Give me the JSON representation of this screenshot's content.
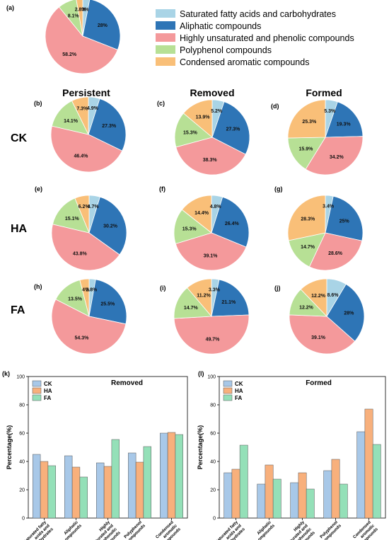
{
  "colors": {
    "saturated": "#a9d4e6",
    "aliphatic": "#2e75b6",
    "unsaturated": "#f4999b",
    "polyphenol": "#b7e095",
    "condensed": "#f9bf78",
    "bar_ck": "#a8c8e8",
    "bar_ha": "#f8b07c",
    "bar_fa": "#94e0b8"
  },
  "legend": {
    "items": [
      "Saturated fatty acids and carbohydrates",
      "Aliphatic compounds",
      "Highly unsaturated and phenolic compounds",
      "Polyphenol compounds",
      "Condensed aromatic compounds"
    ]
  },
  "columns": [
    "Persistent",
    "Removed",
    "Formed"
  ],
  "rows": [
    "CK",
    "HA",
    "FA"
  ],
  "chart_data": [
    {
      "type": "pie",
      "panel": "(a)",
      "categories": [
        "Saturated fatty acids and carbohydrates",
        "Aliphatic compounds",
        "Highly unsaturated and phenolic compounds",
        "Polyphenol compounds",
        "Condensed aromatic compounds"
      ],
      "values": [
        3,
        28,
        58.2,
        8.1,
        2.8
      ],
      "labels": [
        "3%",
        "28%",
        "58.2%",
        "8.1%",
        "2.8%"
      ]
    },
    {
      "type": "pie",
      "panel": "(b)",
      "values": [
        4.9,
        27.3,
        46.4,
        14.1,
        7.3
      ],
      "labels": [
        "4.9%",
        "27.3%",
        "46.4%",
        "14.1%",
        "7.3%"
      ]
    },
    {
      "type": "pie",
      "panel": "(c)",
      "values": [
        5.2,
        27.3,
        38.3,
        15.3,
        13.9
      ],
      "labels": [
        "5.2%",
        "27.3%",
        "38.3%",
        "15.3%",
        "13.9%"
      ]
    },
    {
      "type": "pie",
      "panel": "(d)",
      "values": [
        5.3,
        19.3,
        34.2,
        15.9,
        25.3
      ],
      "labels": [
        "5.3%",
        "19.3%",
        "34.2%",
        "15.9%",
        "25.3%"
      ]
    },
    {
      "type": "pie",
      "panel": "(e)",
      "values": [
        4.7,
        30.2,
        43.8,
        15.1,
        6.2
      ],
      "labels": [
        "4.7%",
        "30.2%",
        "43.8%",
        "15.1%",
        "6.2%"
      ]
    },
    {
      "type": "pie",
      "panel": "(f)",
      "values": [
        4.8,
        26.4,
        39.1,
        15.3,
        14.4
      ],
      "labels": [
        "4.8%",
        "26.4%",
        "39.1%",
        "15.3%",
        "14.4%"
      ]
    },
    {
      "type": "pie",
      "panel": "(g)",
      "values": [
        3.4,
        25,
        28.6,
        14.7,
        28.3
      ],
      "labels": [
        "3.4%",
        "25%",
        "28.6%",
        "14.7%",
        "28.3%"
      ]
    },
    {
      "type": "pie",
      "panel": "(h)",
      "values": [
        2.8,
        25.5,
        54.3,
        13.5,
        4
      ],
      "labels": [
        "2.8%",
        "25.5%",
        "54.3%",
        "13.5%",
        "4%"
      ]
    },
    {
      "type": "pie",
      "panel": "(i)",
      "values": [
        3.3,
        21.1,
        49.7,
        14.7,
        11.2
      ],
      "labels": [
        "3.3%",
        "21.1%",
        "49.7%",
        "14.7%",
        "11.2%"
      ]
    },
    {
      "type": "pie",
      "panel": "(j)",
      "values": [
        8.6,
        28,
        39.1,
        12.2,
        12.2
      ],
      "labels": [
        "8.6%",
        "28%",
        "39.1%",
        "12.2%",
        "12.2%"
      ]
    },
    {
      "type": "bar",
      "panel": "(k)",
      "title": "Removed",
      "ylabel": "Percentage(%)",
      "ylim": [
        0,
        100
      ],
      "yticks": [
        0,
        20,
        40,
        60,
        80,
        100
      ],
      "categories": [
        "Saturated fatty acids and carbohydrates",
        "Aliphatic compounds",
        "Highly unsaturated and phenolic compounds",
        "Polyphenol compounds",
        "Condensed aromatic compounds"
      ],
      "category_lines": [
        [
          "Saturated fatty",
          "acids and",
          "carbohydrates"
        ],
        [
          "Aliphatic",
          "compounds"
        ],
        [
          "Highly",
          "unsaturated and",
          "phenolic",
          "compounds"
        ],
        [
          "Polyphenol",
          "compounds"
        ],
        [
          "Condensed",
          "aromatic",
          "compounds"
        ]
      ],
      "series": [
        {
          "name": "CK",
          "values": [
            45,
            44,
            39,
            46,
            60
          ]
        },
        {
          "name": "HA",
          "values": [
            40,
            36,
            36.5,
            39.5,
            60.5
          ]
        },
        {
          "name": "FA",
          "values": [
            37,
            29,
            55.5,
            50.5,
            59
          ]
        }
      ],
      "legend": "top-left"
    },
    {
      "type": "bar",
      "panel": "(l)",
      "title": "Formed",
      "ylabel": "Percentage(%)",
      "ylim": [
        0,
        100
      ],
      "yticks": [
        0,
        20,
        40,
        60,
        80,
        100
      ],
      "categories": [
        "Saturated fatty acids and carbohydrates",
        "Aliphatic compounds",
        "Highly unsaturated and phenolic compounds",
        "Polyphenol compounds",
        "Condensed aromatic compounds"
      ],
      "category_lines": [
        [
          "Saturated fatty",
          "acids and",
          "carbohydrates"
        ],
        [
          "Aliphatic",
          "compounds"
        ],
        [
          "Highly",
          "unsaturated and",
          "phenolic",
          "compounds"
        ],
        [
          "Polyphenol",
          "compounds"
        ],
        [
          "Condensed",
          "aromatic",
          "compounds"
        ]
      ],
      "series": [
        {
          "name": "CK",
          "values": [
            32,
            24,
            25,
            33.5,
            61
          ]
        },
        {
          "name": "HA",
          "values": [
            34.5,
            37.5,
            32,
            41.5,
            77
          ]
        },
        {
          "name": "FA",
          "values": [
            51.5,
            27.5,
            20.5,
            24,
            52
          ]
        }
      ],
      "legend": "top-left"
    }
  ]
}
